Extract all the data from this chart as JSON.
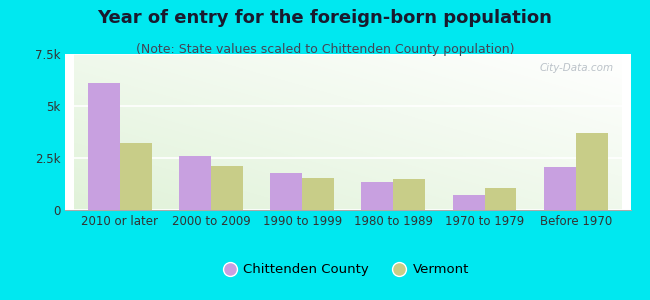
{
  "title": "Year of entry for the foreign-born population",
  "subtitle": "(Note: State values scaled to Chittenden County population)",
  "categories": [
    "2010 or later",
    "2000 to 2009",
    "1990 to 1999",
    "1980 to 1989",
    "1970 to 1979",
    "Before 1970"
  ],
  "chittenden": [
    6100,
    2600,
    1800,
    1350,
    700,
    2050
  ],
  "vermont": [
    3200,
    2100,
    1550,
    1500,
    1050,
    3700
  ],
  "chittenden_color": "#c8a0e0",
  "vermont_color": "#c8cd88",
  "background_color": "#00e8f0",
  "ylim": [
    0,
    7500
  ],
  "yticks": [
    0,
    2500,
    5000,
    7500
  ],
  "ytick_labels": [
    "0",
    "2.5k",
    "5k",
    "7.5k"
  ],
  "legend_labels": [
    "Chittenden County",
    "Vermont"
  ],
  "bar_width": 0.35,
  "title_fontsize": 13,
  "subtitle_fontsize": 9,
  "tick_fontsize": 8.5,
  "legend_fontsize": 9.5
}
